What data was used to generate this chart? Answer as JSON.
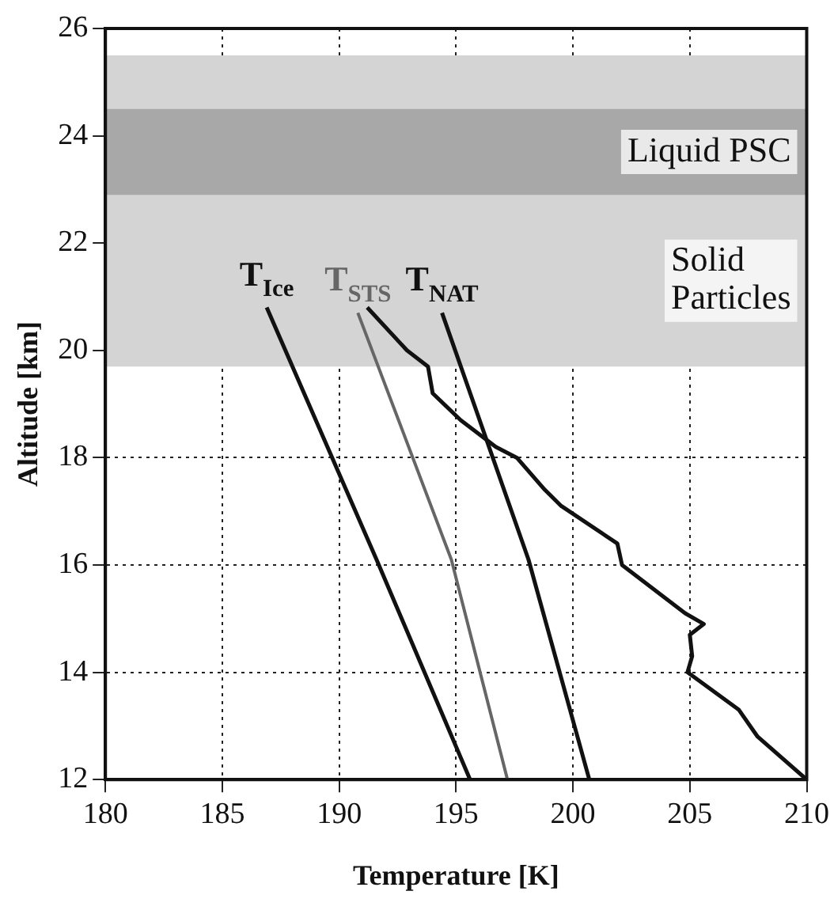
{
  "chart_data": {
    "type": "line",
    "xlabel": "Temperature [K]",
    "ylabel": "Altitude [km]",
    "xlim": [
      180,
      210
    ],
    "xticks": [
      180,
      185,
      190,
      195,
      200,
      205,
      210
    ],
    "ylim": [
      12,
      26
    ],
    "yticks": [
      12,
      14,
      16,
      18,
      20,
      22,
      24,
      26
    ],
    "grid": true,
    "legend": false,
    "marker": "none",
    "line_style": "solid",
    "bands": [
      {
        "axis": "y",
        "from": 19.7,
        "to": 25.5,
        "label": "Solid Particles",
        "color": "#d4d4d4"
      },
      {
        "axis": "y",
        "from": 22.9,
        "to": 24.5,
        "label": "Liquid PSC",
        "color": "#a8a8a8"
      }
    ],
    "series": [
      {
        "name": "T$_{Ice}$",
        "color": "#111111",
        "x": [
          186.9,
          191.6,
          195.6
        ],
        "values": [
          20.8,
          16.1,
          12
        ]
      },
      {
        "name": "T$_{STS}$",
        "color": "#666666",
        "x": [
          190.8,
          194.8,
          197.2
        ],
        "values": [
          20.7,
          16.1,
          12
        ]
      },
      {
        "name": "T$_{NAT}$",
        "color": "#111111",
        "x": [
          194.4,
          198.1,
          200.7
        ],
        "values": [
          20.7,
          16.1,
          12
        ]
      },
      {
        "color": "#111111",
        "x": [
          191.2,
          192.9,
          193.8,
          194.0,
          195.2,
          196.7,
          197.6,
          198.8,
          199.5,
          201.9,
          202.1,
          204.8,
          205.6,
          205.0,
          205.1,
          204.9,
          207.1,
          207.9,
          210.0
        ],
        "values": [
          20.8,
          20.0,
          19.7,
          19.2,
          18.7,
          18.2,
          18.0,
          17.4,
          17.1,
          16.4,
          16.0,
          15.1,
          14.9,
          14.7,
          14.3,
          14.0,
          13.3,
          12.8,
          12.0
        ]
      }
    ]
  }
}
